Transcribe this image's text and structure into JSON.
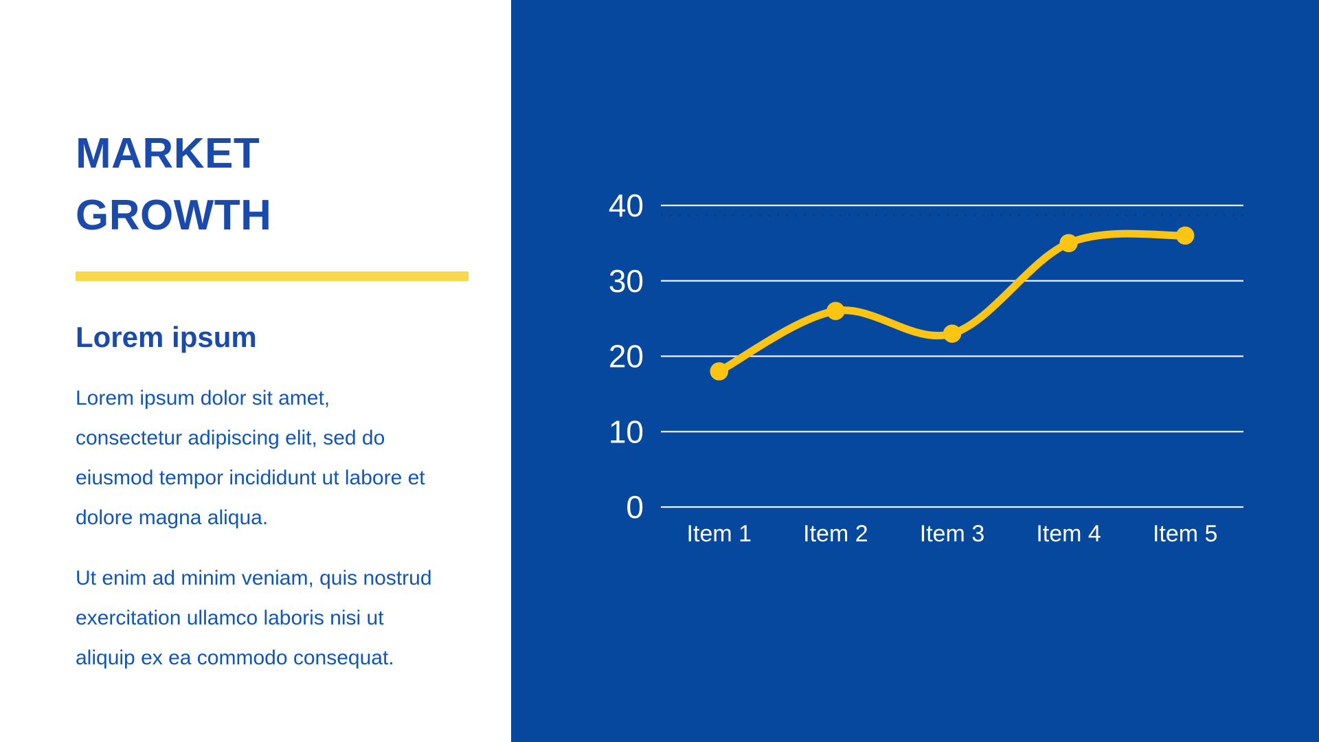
{
  "slide": {
    "left_panel": {
      "title": "MARKET\nGROWTH",
      "subtitle": "Lorem ipsum",
      "paragraph_1": "Lorem ipsum dolor sit amet,\nconsectetur adipiscing elit, sed do\neiusmod tempor incididunt ut labore et\ndolore magna aliqua.",
      "paragraph_2": "Ut enim ad minim veniam, quis nostrud\nexercitation ullamco laboris nisi ut\naliquip ex ea commodo consequat."
    }
  },
  "colors": {
    "panel_blue": "#06489d",
    "title_blue": "#1b4aad",
    "body_blue": "#1256b4",
    "divider_yellow": "#fbd84b",
    "line_yellow": "#fcc514",
    "grid_white": "#eef3fb",
    "axis_text_white": "#ffffff",
    "dotted_accent_dark_blue": "#04357f"
  },
  "chart_data": {
    "type": "line",
    "categories": [
      "Item 1",
      "Item 2",
      "Item 3",
      "Item 4",
      "Item 5"
    ],
    "values": [
      18,
      26,
      23,
      35,
      36
    ],
    "title": "",
    "xlabel": "",
    "ylabel": "",
    "ylim": [
      0,
      40
    ],
    "yticks": [
      0,
      10,
      20,
      30,
      40
    ],
    "grid": true,
    "legend_position": "none",
    "line_color": "#fcc514",
    "marker_style": "ring"
  }
}
